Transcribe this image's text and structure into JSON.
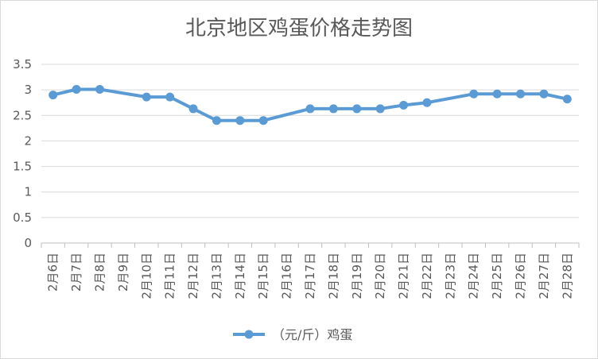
{
  "chart_data": {
    "type": "line",
    "title": "北京地区鸡蛋价格走势图",
    "categories": [
      "2月6日",
      "2月7日",
      "2月8日",
      "2月9日",
      "2月10日",
      "2月11日",
      "2月12日",
      "2月13日",
      "2月14日",
      "2月15日",
      "2月16日",
      "2月17日",
      "2月18日",
      "2月19日",
      "2月20日",
      "2月21日",
      "2月22日",
      "2月23日",
      "2月24日",
      "2月25日",
      "2月26日",
      "2月27日",
      "2月28日"
    ],
    "series": [
      {
        "name": "（元/斤）鸡蛋",
        "color": "#5b9bd5",
        "values": [
          2.9,
          3.01,
          3.01,
          null,
          2.86,
          2.86,
          2.63,
          2.4,
          2.4,
          2.4,
          null,
          2.63,
          2.63,
          2.63,
          2.63,
          2.7,
          2.75,
          null,
          2.92,
          2.92,
          2.92,
          2.92,
          2.82
        ]
      }
    ],
    "ylim": [
      0,
      3.5
    ],
    "yticks": [
      "0",
      "0.5",
      "1",
      "1.5",
      "2",
      "2.5",
      "3",
      "3.5"
    ],
    "grid": true,
    "legend_position": "bottom"
  }
}
